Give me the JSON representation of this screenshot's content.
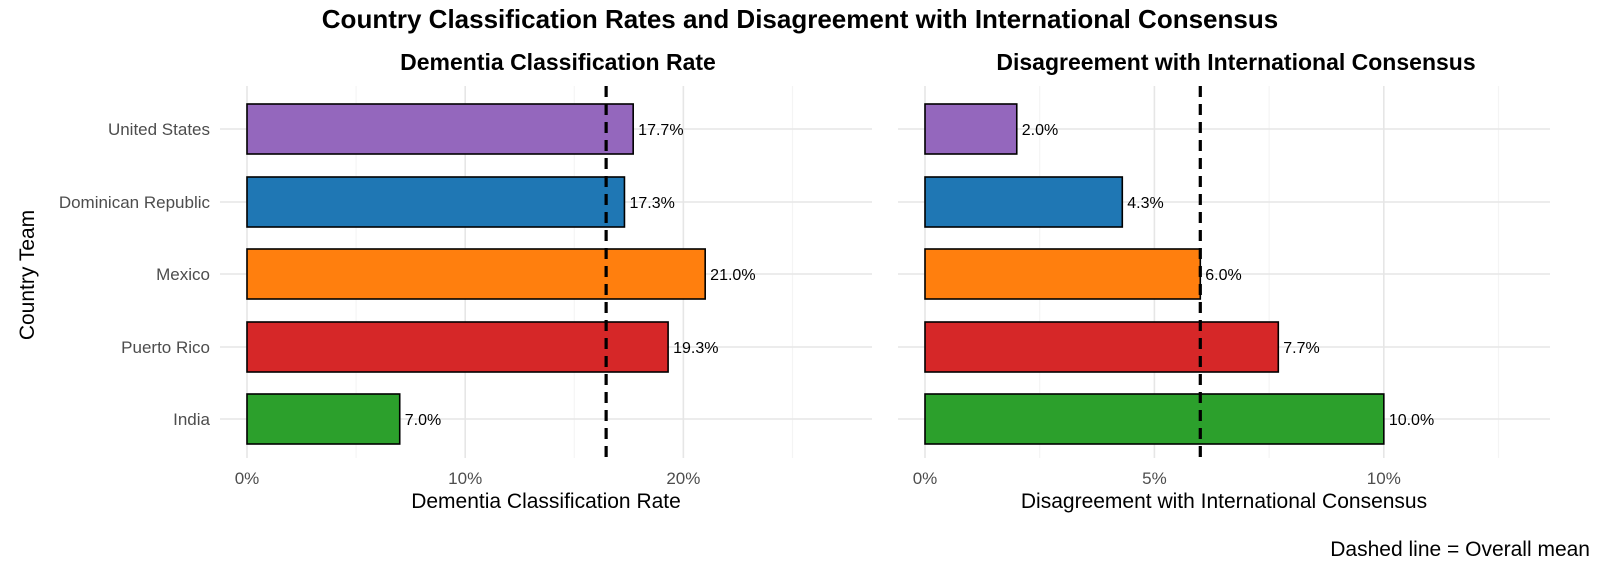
{
  "title": "Country Classification Rates and Disagreement with International Consensus",
  "caption": "Dashed line = Overall mean",
  "y_axis_label": "Country Team",
  "colors": {
    "United States": "#9467bd",
    "Dominican Republic": "#1f77b4",
    "Mexico": "#ff7f0e",
    "Puerto Rico": "#d62728",
    "India": "#2ca02c"
  },
  "chart_data": [
    {
      "type": "bar",
      "orientation": "horizontal",
      "title": "Dementia Classification Rate",
      "xlabel": "Dementia Classification Rate",
      "ylabel": "Country Team",
      "categories": [
        "United States",
        "Dominican Republic",
        "Mexico",
        "Puerto Rico",
        "India"
      ],
      "values": [
        17.7,
        17.3,
        21.0,
        19.3,
        7.0
      ],
      "labels": [
        "17.7%",
        "17.3%",
        "21.0%",
        "19.3%",
        "7.0%"
      ],
      "xlim": [
        0,
        28.6
      ],
      "xticks": [
        0,
        10,
        20
      ],
      "xtick_labels": [
        "0%",
        "10%",
        "20%"
      ],
      "mean_line": 16.46,
      "grid": true
    },
    {
      "type": "bar",
      "orientation": "horizontal",
      "title": "Disagreement with International Consensus",
      "xlabel": "Disagreement with International Consensus",
      "categories": [
        "United States",
        "Dominican Republic",
        "Mexico",
        "Puerto Rico",
        "India"
      ],
      "values": [
        2.0,
        4.3,
        6.0,
        7.7,
        10.0
      ],
      "labels": [
        "2.0%",
        "4.3%",
        "6.0%",
        "7.7%",
        "10.0%"
      ],
      "xlim": [
        0,
        13.6
      ],
      "xticks": [
        0,
        5,
        10
      ],
      "xtick_labels": [
        "0%",
        "5%",
        "10%"
      ],
      "mean_line": 6.0,
      "grid": true
    }
  ]
}
